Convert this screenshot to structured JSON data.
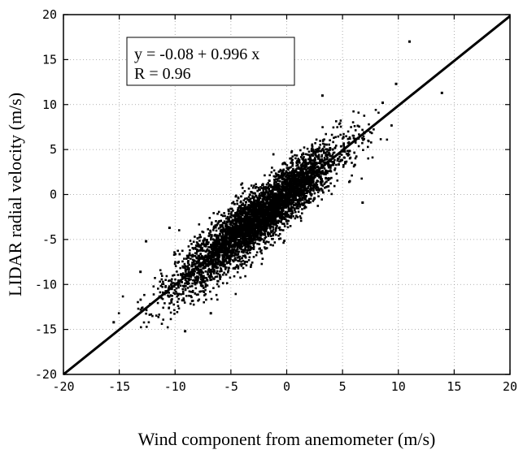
{
  "chart_data": {
    "type": "scatter",
    "title": "",
    "xlabel": "Wind component from anemometer (m/s)",
    "ylabel": "LIDAR radial velocity (m/s)",
    "xlim": [
      -20,
      20
    ],
    "ylim": [
      -20,
      20
    ],
    "xticks": [
      "-20",
      "-15",
      "-10",
      "-5",
      "0",
      "5",
      "10",
      "15",
      "20"
    ],
    "yticks": [
      "-20",
      "-15",
      "-10",
      "-5",
      "0",
      "5",
      "10",
      "15",
      "20"
    ],
    "grid": true,
    "annotation": {
      "lines": [
        "y = -0.08 + 0.996 x",
        "R = 0.96"
      ]
    },
    "fit_line": {
      "intercept": -0.08,
      "slope": 0.996
    },
    "cloud": {
      "x_center": -2.5,
      "x_spread": 3.6,
      "slope": 0.996,
      "intercept": -0.08,
      "residual_spread": 1.6,
      "x_min": -16,
      "x_max": 10
    },
    "points": [
      {
        "x": 11.0,
        "y": 17.0
      },
      {
        "x": 9.8,
        "y": 12.3
      },
      {
        "x": 13.9,
        "y": 11.3
      },
      {
        "x": 8.6,
        "y": 10.2
      },
      {
        "x": -15.5,
        "y": -14.2
      },
      {
        "x": -13.1,
        "y": -8.6
      },
      {
        "x": -12.6,
        "y": -5.2
      },
      {
        "x": -9.1,
        "y": -15.2
      },
      {
        "x": 3.2,
        "y": 11.0
      },
      {
        "x": -6.8,
        "y": -13.2
      },
      {
        "x": 6.8,
        "y": -0.9
      },
      {
        "x": -10.5,
        "y": -3.7
      }
    ]
  }
}
